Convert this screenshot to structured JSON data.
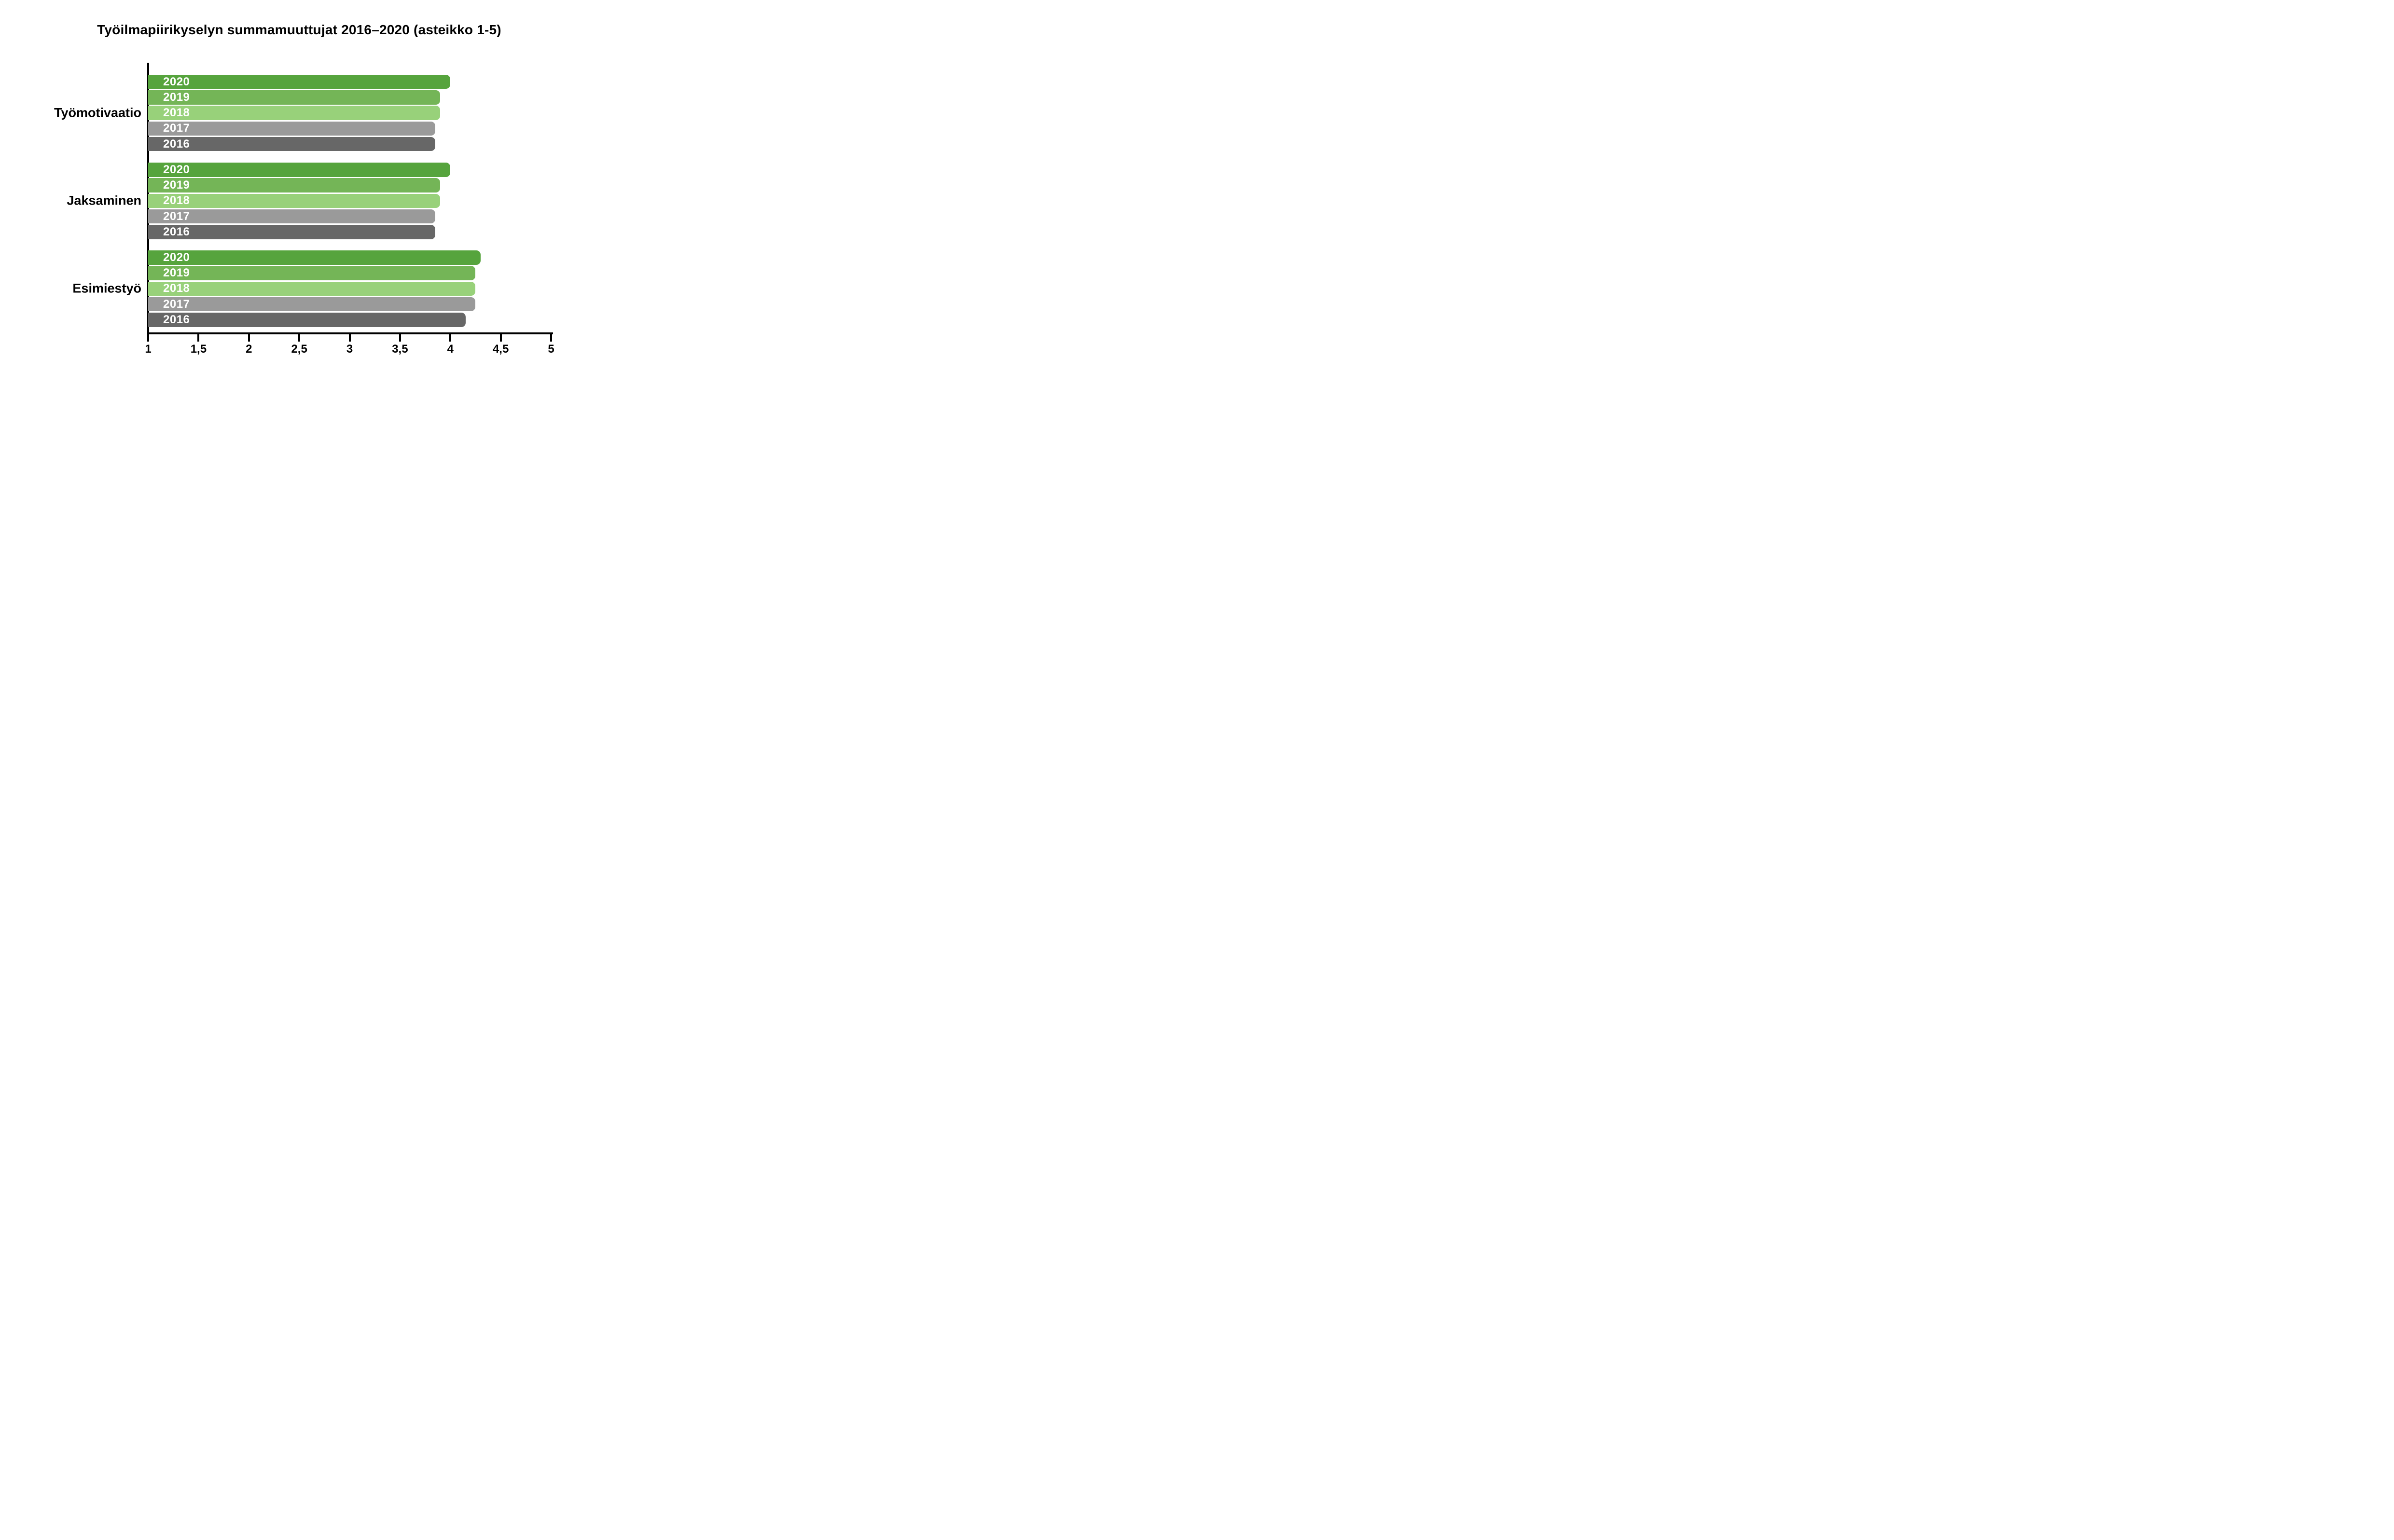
{
  "chart_data": {
    "type": "bar",
    "orientation": "horizontal",
    "title": "Työilmapiirikyselyn summamuuttujat 2016–2020 (asteikko 1-5)",
    "categories": [
      "Työmotivaatio",
      "Jaksaminen",
      "Esimiestyö"
    ],
    "series": [
      {
        "name": "2020",
        "color": "#56a43d",
        "values": [
          4.0,
          4.0,
          4.3
        ]
      },
      {
        "name": "2019",
        "color": "#74b557",
        "values": [
          3.9,
          3.9,
          4.25
        ]
      },
      {
        "name": "2018",
        "color": "#98d17a",
        "values": [
          3.9,
          3.9,
          4.25
        ]
      },
      {
        "name": "2017",
        "color": "#9a9a9a",
        "values": [
          3.85,
          3.85,
          4.25
        ]
      },
      {
        "name": "2016",
        "color": "#676767",
        "values": [
          3.85,
          3.85,
          4.15
        ]
      }
    ],
    "series_order": "top-to-bottom within each category group: 2020, 2019, 2018, 2017, 2016",
    "bar_labels": "year shown in white bold text inside left end of each bar",
    "xlim": [
      1,
      5
    ],
    "x_ticks": [
      1,
      1.5,
      2,
      2.5,
      3,
      3.5,
      4,
      4.5,
      5
    ],
    "x_tick_labels": [
      "1",
      "1,5",
      "2",
      "2,5",
      "3",
      "3,5",
      "4",
      "4,5",
      "5"
    ],
    "grid": "off",
    "legend": "none",
    "axis_color": "#000000",
    "background_color": "#ffffff"
  }
}
